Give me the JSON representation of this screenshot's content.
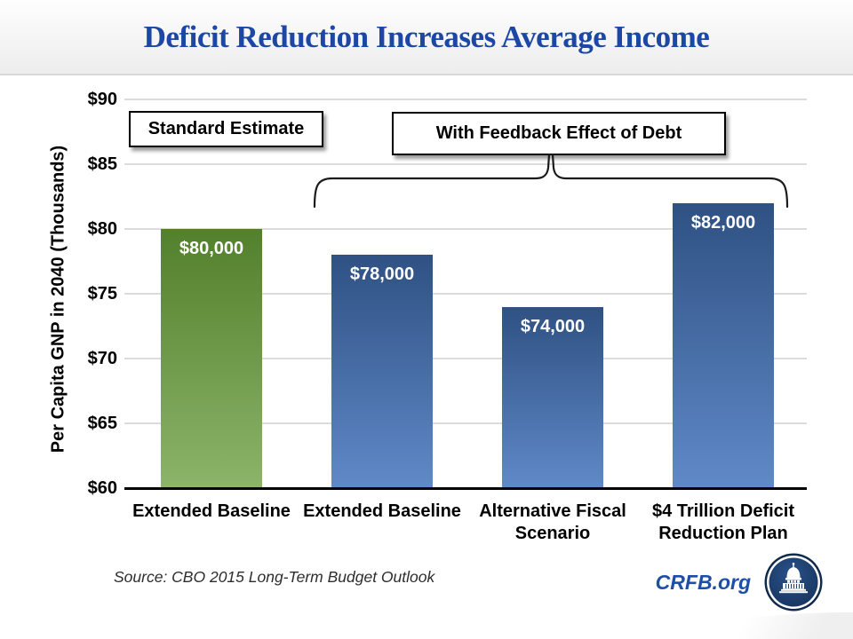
{
  "slide": {
    "title": "Deficit Reduction Increases Average Income",
    "source_note": "Source: CBO 2015 Long-Term Budget Outlook",
    "brand_label": "CRFB.org",
    "logo": "capitol-dome-logo"
  },
  "callouts": {
    "standard": "Standard Estimate",
    "feedback": "With Feedback Effect of Debt"
  },
  "chart_data": {
    "type": "bar",
    "title": "Deficit Reduction Increases Average Income",
    "xlabel": "",
    "ylabel": "Per Capita GNP in 2040 (Thousands)",
    "ylim": [
      60,
      90
    ],
    "ytick_step": 5,
    "ytick_labels": [
      "$60",
      "$65",
      "$70",
      "$75",
      "$80",
      "$85",
      "$90"
    ],
    "grid": true,
    "legend": "none",
    "categories": [
      "Extended Baseline",
      "Extended Baseline",
      "Alternative Fiscal Scenario",
      "$4 Trillion Deficit Reduction Plan"
    ],
    "categories_lines": [
      [
        "Extended Baseline"
      ],
      [
        "Extended Baseline"
      ],
      [
        "Alternative Fiscal",
        "Scenario"
      ],
      [
        "$4 Trillion Deficit",
        "Reduction Plan"
      ]
    ],
    "values": [
      80,
      78,
      74,
      82
    ],
    "value_labels": [
      "$80,000",
      "$78,000",
      "$74,000",
      "$82,000"
    ],
    "bar_colors": [
      "green",
      "blue",
      "blue",
      "blue"
    ],
    "annotations": [
      {
        "label": "Standard Estimate",
        "applies_to_bars": [
          0
        ]
      },
      {
        "label": "With Feedback Effect of Debt",
        "applies_to_bars": [
          1,
          2,
          3
        ]
      }
    ],
    "colors": {
      "green_bar_top": "#53802b",
      "green_bar_bottom": "#8cb46a",
      "blue_bar_top": "#2f5183",
      "blue_bar_bottom": "#6089c8",
      "title_text": "#1c47a4",
      "brand_text": "#1d4fa8",
      "gridline": "#dcdcdc",
      "axis_line": "#000000",
      "logo_navy": "#1e3f72"
    }
  }
}
